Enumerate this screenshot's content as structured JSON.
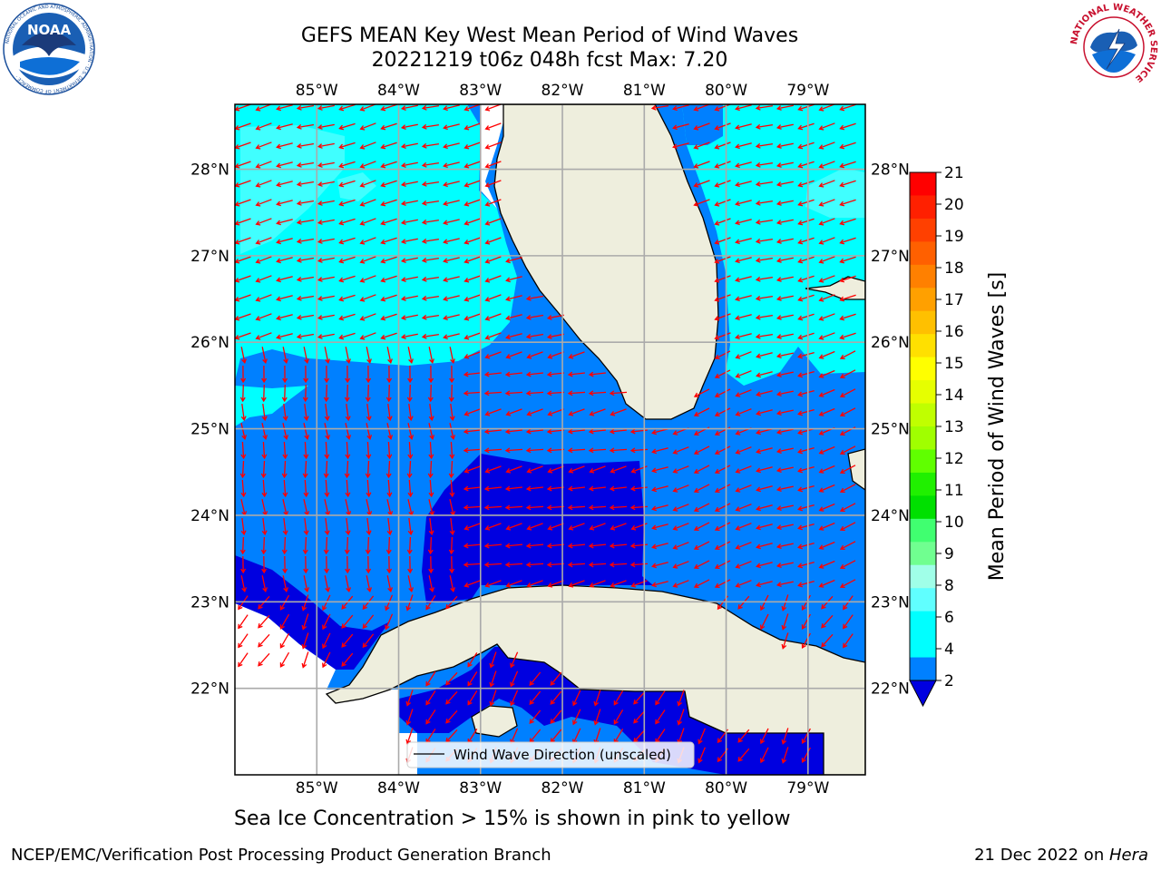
{
  "header": {
    "title_line1": "GEFS MEAN Key West Mean Period of Wind Waves",
    "title_line2": "20221219 t06z 048h fcst   Max: 7.20"
  },
  "logos": {
    "left": "NOAA",
    "left_ring": "NATIONAL OCEANIC AND ATMOSPHERIC ADMINISTRATION · U.S. DEPARTMENT OF COMMERCE ·",
    "right_ring": "NATIONAL WEATHER SERVICE"
  },
  "map": {
    "lon_ticks": [
      "85°W",
      "84°W",
      "83°W",
      "82°W",
      "81°W",
      "80°W",
      "79°W"
    ],
    "lat_ticks": [
      "28°N",
      "27°N",
      "26°N",
      "25°N",
      "24°N",
      "23°N",
      "22°N"
    ],
    "lon_values": [
      -85,
      -84,
      -83,
      -82,
      -81,
      -80,
      -79
    ],
    "lat_values": [
      28,
      27,
      26,
      25,
      24,
      23,
      22
    ],
    "extent": {
      "lon_min": -86,
      "lon_max": -78.3,
      "lat_min": 21.0,
      "lat_max": 28.75
    },
    "legend_label": "Wind Wave Direction (unscaled)",
    "colors": {
      "land": "#eeeedd",
      "level_2_4": "#0080ff",
      "level_4_6": "#00ffff",
      "level_6_8": "#40ffff",
      "level_0_2": "#0000e0",
      "arrow": "#ff0000"
    }
  },
  "colorbar": {
    "label": "Mean Period of Wind Waves [s]",
    "tick_labels": [
      "21",
      "20",
      "19",
      "18",
      "17",
      "16",
      "15",
      "14",
      "13",
      "12",
      "11",
      "10",
      "9",
      "8",
      "6",
      "4",
      "2"
    ],
    "bands": [
      {
        "color": "#ff0000"
      },
      {
        "color": "#ff2000"
      },
      {
        "color": "#ff4000"
      },
      {
        "color": "#ff6000"
      },
      {
        "color": "#ff8000"
      },
      {
        "color": "#ffa000"
      },
      {
        "color": "#ffc000"
      },
      {
        "color": "#ffe000"
      },
      {
        "color": "#ffff00"
      },
      {
        "color": "#e6ff00"
      },
      {
        "color": "#c0ff00"
      },
      {
        "color": "#a0ff00"
      },
      {
        "color": "#60ff00"
      },
      {
        "color": "#20f000"
      },
      {
        "color": "#00e000"
      },
      {
        "color": "#40ff70"
      },
      {
        "color": "#70ff90"
      },
      {
        "color": "#a0ffe8"
      },
      {
        "color": "#60ffff"
      },
      {
        "color": "#00ffff"
      },
      {
        "color": "#00ffff"
      },
      {
        "color": "#0080ff"
      }
    ],
    "extend_color": "#0000e0"
  },
  "footer": {
    "note": "Sea Ice Concentration > 15% is shown in pink to yellow",
    "left": "NCEP/EMC/Verification Post Processing Product Generation Branch",
    "date": "21 Dec 2022 on ",
    "machine": "Hera"
  }
}
